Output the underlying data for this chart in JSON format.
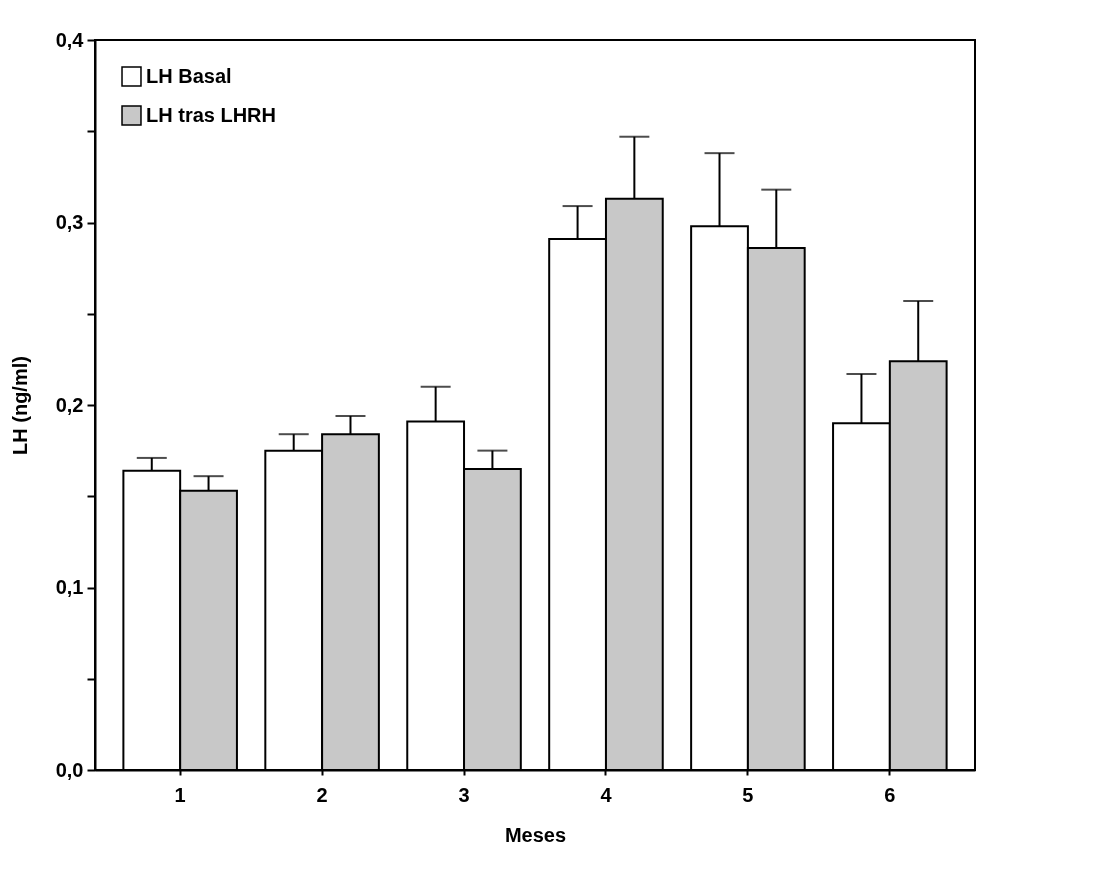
{
  "chart_data": {
    "type": "bar",
    "xlabel": "Meses",
    "ylabel": "LH (ng/ml)",
    "categories": [
      "1",
      "2",
      "3",
      "4",
      "5",
      "6"
    ],
    "series": [
      {
        "name": "LH  Basal",
        "color": "#ffffff",
        "values": [
          0.164,
          0.175,
          0.191,
          0.291,
          0.298,
          0.19
        ],
        "errors": [
          0.007,
          0.009,
          0.019,
          0.018,
          0.04,
          0.027
        ]
      },
      {
        "name": "LH  tras  LHRH",
        "color": "#c8c8c8",
        "values": [
          0.153,
          0.184,
          0.165,
          0.313,
          0.286,
          0.224
        ],
        "errors": [
          0.008,
          0.01,
          0.01,
          0.034,
          0.032,
          0.033
        ]
      }
    ],
    "ylim": [
      0,
      0.4
    ],
    "yticks": [
      {
        "value": 0,
        "label": "0,0"
      },
      {
        "value": 0.05,
        "label": null
      },
      {
        "value": 0.1,
        "label": "0,1"
      },
      {
        "value": 0.15,
        "label": null
      },
      {
        "value": 0.2,
        "label": "0,2"
      },
      {
        "value": 0.25,
        "label": null
      },
      {
        "value": 0.3,
        "label": "0,3"
      },
      {
        "value": 0.35,
        "label": null
      },
      {
        "value": 0.4,
        "label": "0,4"
      }
    ],
    "legend": "top left",
    "grid": false
  }
}
